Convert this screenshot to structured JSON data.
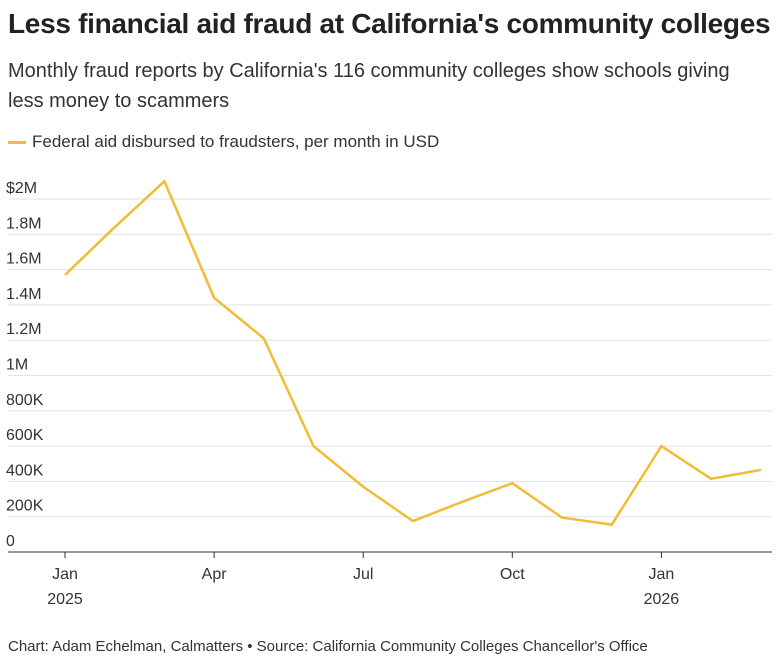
{
  "title": "Less financial aid fraud at California's community colleges",
  "subtitle": "Monthly fraud reports by California's 116 community colleges show schools giving less money to scammers",
  "footer": "Chart: Adam Echelman, Calmatters • Source: California Community Colleges Chancellor's Office",
  "chart_data": {
    "type": "line",
    "x": [
      "2025-01",
      "2025-02",
      "2025-03",
      "2025-04",
      "2025-05",
      "2025-06",
      "2025-07",
      "2025-08",
      "2025-09",
      "2025-10",
      "2025-11",
      "2025-12",
      "2026-01",
      "2026-02",
      "2026-03"
    ],
    "series": [
      {
        "name": "Federal aid disbursed to fraudsters, per month in USD",
        "color": "#f2bc33",
        "values": [
          1570000,
          1840000,
          2100000,
          1440000,
          1210000,
          600000,
          370000,
          175000,
          285000,
          390000,
          195000,
          155000,
          600000,
          415000,
          465000
        ]
      }
    ],
    "ylim": [
      0,
      2000000
    ],
    "yticks": [
      {
        "value": 0,
        "label": "0"
      },
      {
        "value": 200000,
        "label": "200K"
      },
      {
        "value": 400000,
        "label": "400K"
      },
      {
        "value": 600000,
        "label": "600K"
      },
      {
        "value": 800000,
        "label": "800K"
      },
      {
        "value": 1000000,
        "label": "1M"
      },
      {
        "value": 1200000,
        "label": "1.2M"
      },
      {
        "value": 1400000,
        "label": "1.4M"
      },
      {
        "value": 1600000,
        "label": "1.6M"
      },
      {
        "value": 1800000,
        "label": "1.8M"
      },
      {
        "value": 2000000,
        "label": "$2M"
      }
    ],
    "xticks": [
      {
        "x": "2025-01",
        "label": "Jan",
        "sublabel": "2025"
      },
      {
        "x": "2025-04",
        "label": "Apr",
        "sublabel": ""
      },
      {
        "x": "2025-07",
        "label": "Jul",
        "sublabel": ""
      },
      {
        "x": "2025-10",
        "label": "Oct",
        "sublabel": ""
      },
      {
        "x": "2026-01",
        "label": "Jan",
        "sublabel": "2026"
      }
    ],
    "grid": true,
    "legend": "top-left"
  }
}
